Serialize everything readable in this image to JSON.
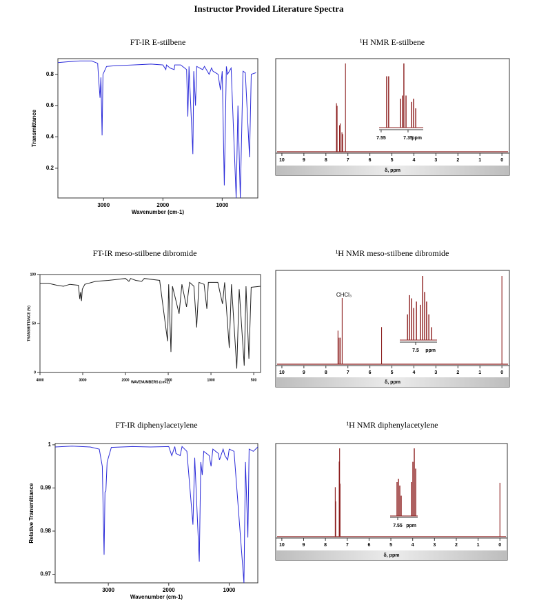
{
  "title": "Instructor Provided Literature Spectra",
  "chart_data": [
    {
      "type": "line",
      "title": "FT-IR E-stilbene",
      "xlabel": "Wavenumber (cm-1)",
      "ylabel": "Transmittance",
      "color": "#2b2bd9",
      "xlim": [
        3770,
        400
      ],
      "ylim": [
        0.01,
        0.9
      ],
      "xticks": [
        3000,
        2000,
        1000
      ],
      "yticks": [
        0.2,
        0.4,
        0.6,
        0.8
      ],
      "x": [
        3770,
        3600,
        3400,
        3200,
        3100,
        3080,
        3060,
        3045,
        3025,
        3010,
        2950,
        2800,
        2500,
        2200,
        2000,
        1950,
        1940,
        1880,
        1810,
        1800,
        1700,
        1600,
        1580,
        1560,
        1495,
        1480,
        1450,
        1430,
        1330,
        1300,
        1220,
        1180,
        1155,
        1070,
        1030,
        1000,
        965,
        930,
        910,
        850,
        765,
        735,
        695,
        650,
        610,
        540,
        510,
        430
      ],
      "values": [
        0.875,
        0.88,
        0.885,
        0.885,
        0.87,
        0.75,
        0.65,
        0.78,
        0.41,
        0.8,
        0.85,
        0.855,
        0.86,
        0.865,
        0.86,
        0.83,
        0.86,
        0.84,
        0.83,
        0.86,
        0.86,
        0.83,
        0.53,
        0.85,
        0.29,
        0.82,
        0.6,
        0.85,
        0.83,
        0.85,
        0.8,
        0.84,
        0.82,
        0.8,
        0.7,
        0.82,
        0.09,
        0.85,
        0.8,
        0.84,
        0.01,
        0.6,
        0.01,
        0.82,
        0.81,
        0.27,
        0.8,
        0.81
      ]
    },
    {
      "type": "stem",
      "title": "¹H NMR E-stilbene",
      "xlabel": "δ, ppm",
      "color": "#8b1c1c",
      "xlim": [
        10.28,
        -0.34
      ],
      "ylim": [
        0,
        1
      ],
      "xticks": [
        10,
        9,
        8,
        7,
        6,
        5,
        4,
        3,
        2,
        1,
        0
      ],
      "x": [
        7.52,
        7.49,
        7.38,
        7.35,
        7.27,
        7.24,
        7.11
      ],
      "values": [
        0.55,
        0.52,
        0.3,
        0.32,
        0.22,
        0.2,
        1.0
      ]
    },
    {
      "type": "stem",
      "xlabel": "ppm",
      "color": "#8b1c1c",
      "xlim": [
        7.565,
        7.237
      ],
      "ylim": [
        0,
        1
      ],
      "xticks": [
        7.55,
        7.35
      ],
      "x": [
        7.509,
        7.494,
        7.406,
        7.391,
        7.381,
        7.365,
        7.324,
        7.309,
        7.293
      ],
      "values": [
        0.8,
        0.8,
        0.45,
        0.5,
        1.0,
        0.5,
        0.4,
        0.45,
        0.3
      ]
    },
    {
      "type": "line",
      "title": "FT-IR meso-stilbene dibromide",
      "xlabel": "WAVENUMBERS (cm-1)",
      "ylabel": "TRANSMITTANCE (%)",
      "color": "#222222",
      "xlim": [
        4000,
        420
      ],
      "xscale_break": 2000,
      "xscale_ratio": 2,
      "ylim": [
        0,
        100
      ],
      "xticks": [
        4000,
        3000,
        2000,
        1500,
        1000,
        500
      ],
      "yticks": [
        0,
        50,
        100
      ],
      "x": [
        4000,
        3800,
        3600,
        3450,
        3300,
        3100,
        3070,
        3050,
        3030,
        3010,
        2950,
        2700,
        2400,
        2200,
        2000,
        1960,
        1940,
        1880,
        1810,
        1780,
        1600,
        1508,
        1495,
        1468,
        1450,
        1373,
        1340,
        1286,
        1250,
        1200,
        1167,
        1140,
        1080,
        1048,
        1030,
        920,
        865,
        840,
        786,
        760,
        698,
        670,
        611,
        590,
        556,
        530,
        420
      ],
      "values": [
        91,
        91,
        89,
        88,
        90,
        89,
        75,
        82,
        73,
        85,
        90,
        93,
        94,
        95,
        96,
        93,
        96,
        94,
        93,
        96,
        94,
        32,
        90,
        21,
        88,
        60,
        90,
        67,
        92,
        88,
        46,
        92,
        90,
        65,
        92,
        92,
        70,
        92,
        25,
        90,
        4,
        85,
        7,
        88,
        14,
        87,
        88
      ]
    },
    {
      "type": "stem",
      "title": "¹H NMR meso-stilbene dibromide",
      "xlabel": "δ, ppm",
      "annotation": "CHCl₃",
      "color": "#8b1c1c",
      "xlim": [
        10.28,
        -0.34
      ],
      "ylim": [
        0,
        1
      ],
      "xticks": [
        10,
        9,
        8,
        7,
        6,
        5,
        4,
        3,
        2,
        1,
        0
      ],
      "x": [
        7.45,
        7.4,
        7.35,
        7.26,
        5.47,
        0
      ],
      "values": [
        0.38,
        0.3,
        0.3,
        0.75,
        0.42,
        1.0
      ]
    },
    {
      "type": "stem",
      "xlabel": "ppm",
      "color": "#8b1c1c",
      "xlim": [
        7.564,
        7.414
      ],
      "ylim": [
        0,
        1
      ],
      "xticks": [
        7.5
      ],
      "x": [
        7.533,
        7.525,
        7.517,
        7.508,
        7.497,
        7.481,
        7.472,
        7.464,
        7.456,
        7.447,
        7.436
      ],
      "values": [
        0.4,
        0.7,
        0.65,
        0.5,
        0.6,
        0.55,
        1.0,
        0.75,
        0.6,
        0.4,
        0.2
      ]
    },
    {
      "type": "line",
      "title": "FT-IR diphenylacetylene",
      "xlabel": "Wavenumber (cm-1)",
      "ylabel": "Relative Transmittance",
      "color": "#2a2ad8",
      "xlim": [
        3880,
        526
      ],
      "ylim": [
        0.968,
        1.0003
      ],
      "xticks": [
        3000,
        2000,
        1000
      ],
      "yticks": [
        0.97,
        0.98,
        0.99,
        1
      ],
      "x": [
        3880,
        3600,
        3300,
        3150,
        3100,
        3070,
        3055,
        3040,
        3020,
        2950,
        2600,
        2300,
        2000,
        1950,
        1900,
        1880,
        1810,
        1780,
        1700,
        1600,
        1570,
        1495,
        1470,
        1445,
        1420,
        1330,
        1300,
        1270,
        1180,
        1160,
        1100,
        1070,
        1025,
        1000,
        920,
        755,
        730,
        690,
        670,
        600,
        526
      ],
      "values": [
        0.9995,
        0.9997,
        0.9995,
        0.999,
        0.995,
        0.9745,
        0.989,
        0.9893,
        0.996,
        0.9994,
        0.9996,
        0.9995,
        0.9996,
        0.9975,
        0.9996,
        0.998,
        0.9975,
        0.9996,
        0.9985,
        0.9815,
        0.997,
        0.9729,
        0.996,
        0.993,
        0.9985,
        0.9975,
        0.995,
        0.999,
        0.998,
        0.9965,
        0.999,
        0.9975,
        0.9965,
        0.999,
        0.9985,
        0.968,
        0.996,
        0.9785,
        0.999,
        0.9985,
        0.9995
      ]
    },
    {
      "type": "stem",
      "title": "¹H NMR diphenylacetylene",
      "xlabel": "δ, ppm",
      "color": "#8b1c1c",
      "xlim": [
        10.28,
        -0.34
      ],
      "ylim": [
        0,
        1
      ],
      "xticks": [
        10,
        9,
        8,
        7,
        6,
        5,
        4,
        3,
        2,
        1,
        0
      ],
      "x": [
        7.55,
        7.53,
        7.37,
        7.35,
        7.33,
        0
      ],
      "values": [
        0.56,
        0.4,
        0.85,
        1.0,
        0.6,
        0.61
      ]
    },
    {
      "type": "stem",
      "xlabel": "ppm",
      "color": "#8b1c1c",
      "xlim": [
        7.605,
        7.405
      ],
      "ylim": [
        0,
        1
      ],
      "xticks": [
        7.55
      ],
      "x": [
        7.555,
        7.545,
        7.535,
        7.525,
        7.45,
        7.44,
        7.43,
        7.42
      ],
      "values": [
        0.5,
        0.55,
        0.45,
        0.3,
        0.5,
        0.8,
        1.0,
        0.7
      ]
    }
  ]
}
